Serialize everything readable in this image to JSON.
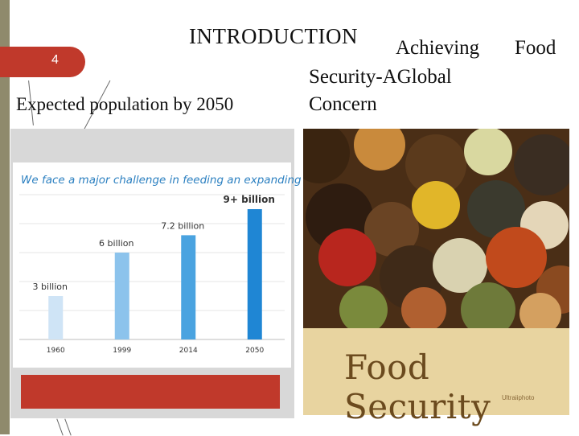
{
  "slide": {
    "number": "4",
    "title": "INTRODUCTION",
    "subtitle_words": [
      "Achieving",
      "Food",
      "Security-",
      "A",
      "Global",
      "Concern"
    ],
    "left_caption": "Expected population by 2050"
  },
  "chart": {
    "headline": "We face a major challenge in feeding an expanding world population",
    "bar_colors": [
      "#cfe4f6",
      "#8cc3ec",
      "#4aa3e0",
      "#1f86d4"
    ]
  },
  "chart_data": {
    "type": "bar",
    "title": "We face a major challenge in feeding an expanding world population",
    "categories": [
      "1960",
      "1999",
      "2014",
      "2050"
    ],
    "values": [
      3,
      6,
      7.2,
      9
    ],
    "data_labels": [
      "3 billion",
      "6 billion",
      "7.2 billion",
      "9+ billion"
    ],
    "xlabel": "",
    "ylabel": "",
    "ylim": [
      0,
      10
    ],
    "grid": true
  },
  "photo": {
    "banner_title": "Food Security",
    "credit": "Ultraiiphoto"
  },
  "colors": {
    "accent": "#c0392b",
    "chart_blue": "#2a7fc0"
  }
}
